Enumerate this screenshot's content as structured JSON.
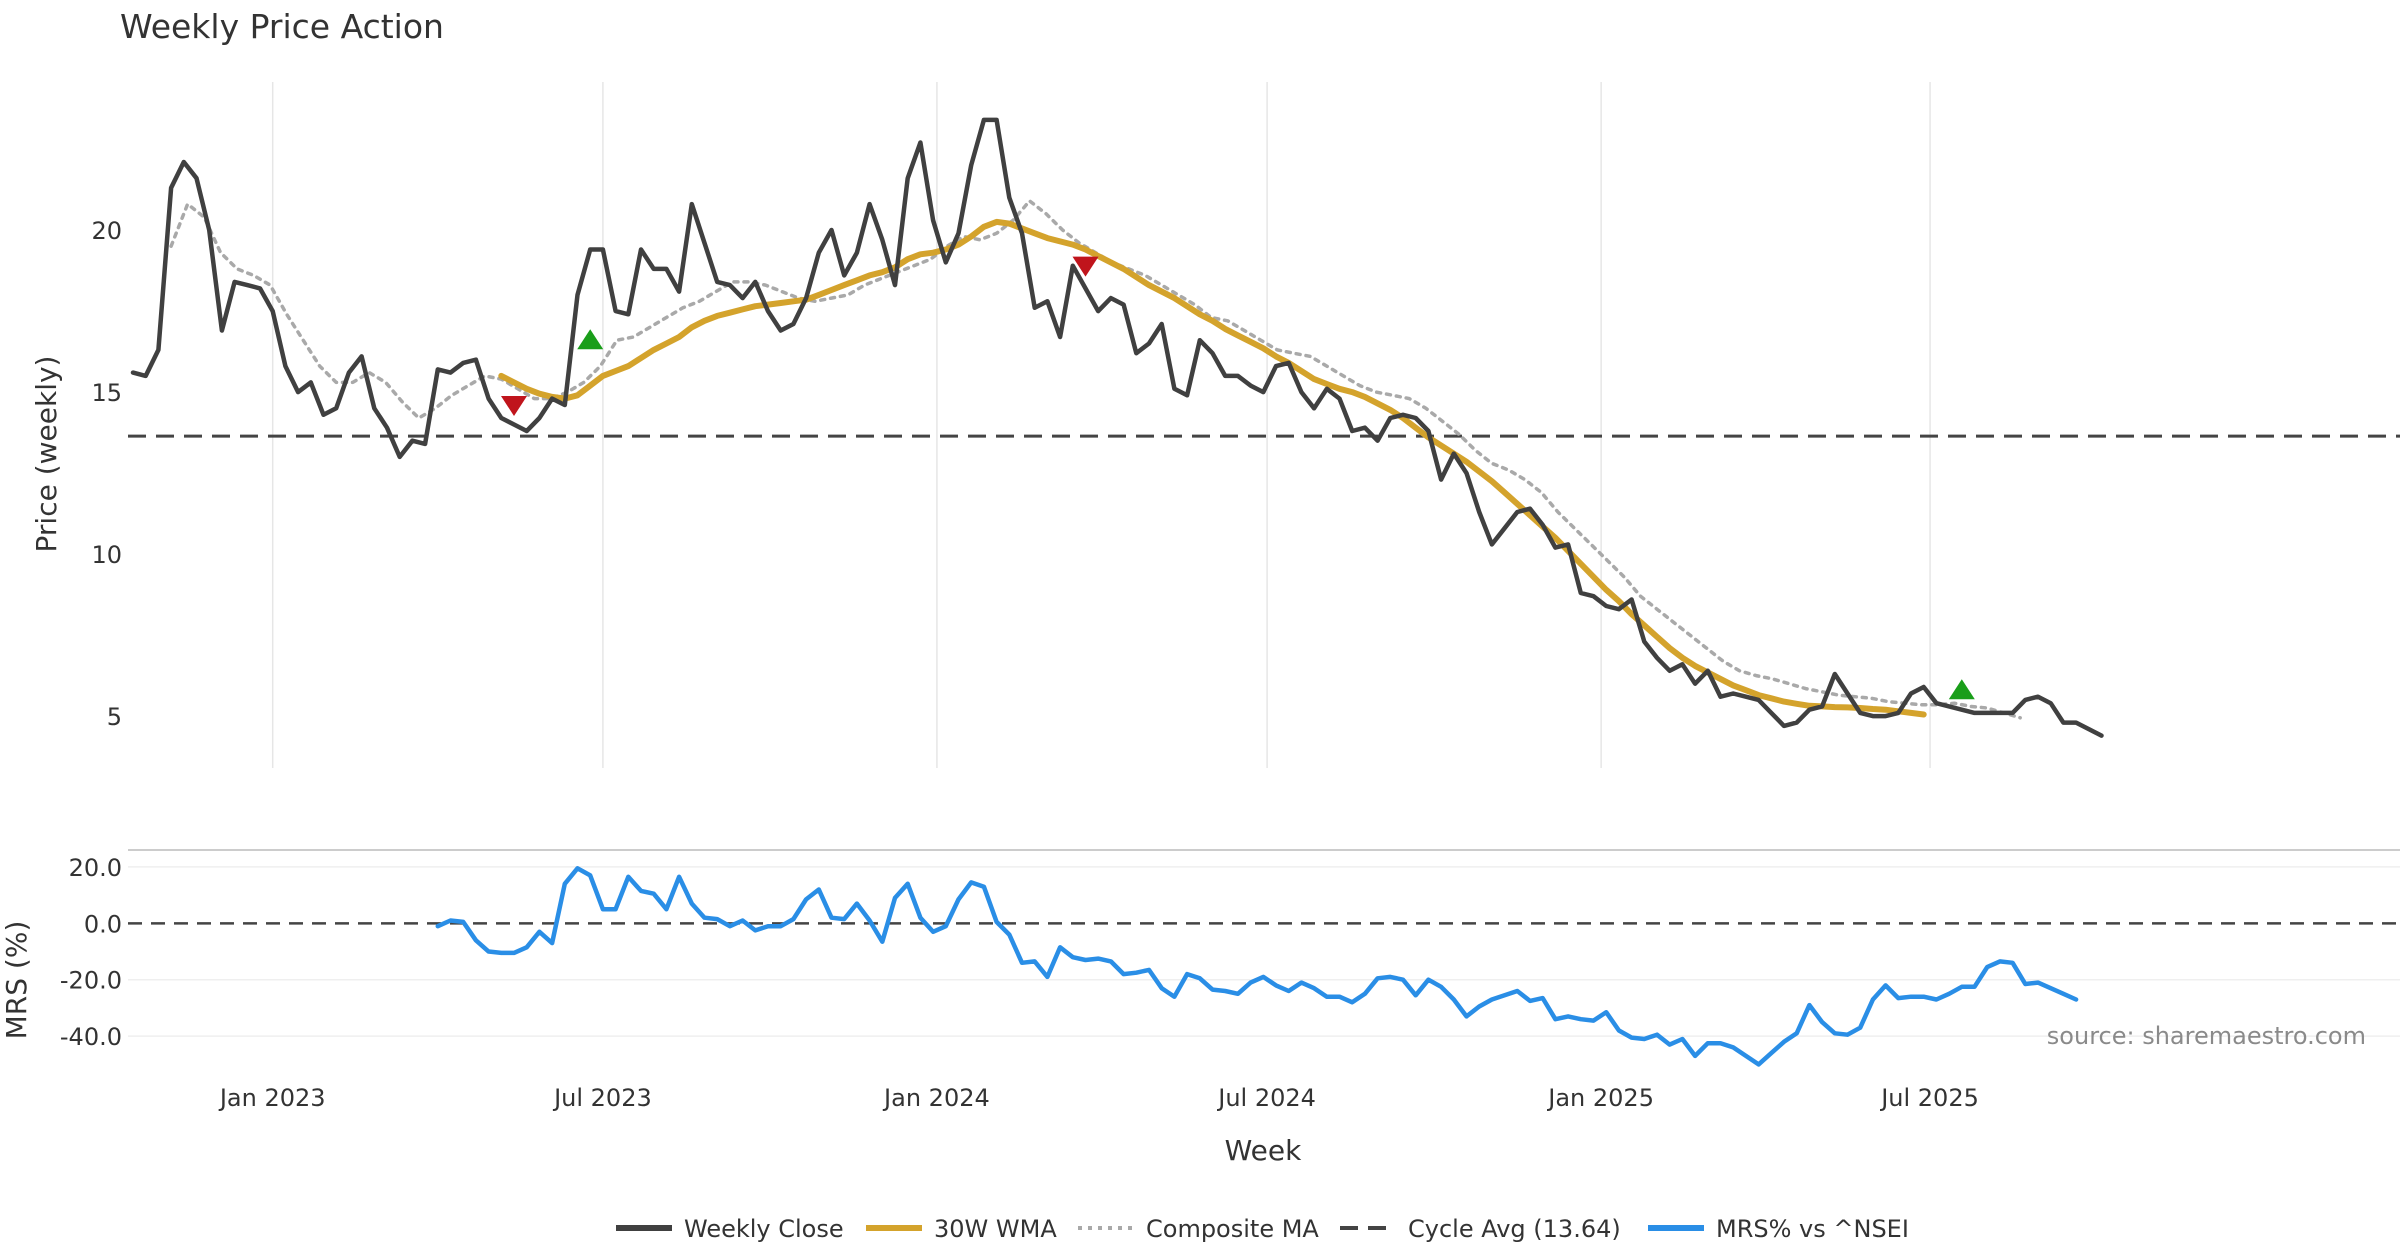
{
  "chart_data": [
    {
      "type": "line",
      "title": "Weekly Price Action",
      "xlabel": "Week",
      "ylabel": "Price (weekly)",
      "ylim": [
        3.4,
        25.0
      ],
      "yticks": [
        5,
        10,
        15,
        20
      ],
      "xticks": [
        {
          "label": "Jan 2023",
          "week": 11
        },
        {
          "label": "Jul 2023",
          "week": 37
        },
        {
          "label": "Jan 2024",
          "week": 63.3
        },
        {
          "label": "Jul 2024",
          "week": 89.3
        },
        {
          "label": "Jan 2025",
          "week": 115.6
        },
        {
          "label": "Jul 2025",
          "week": 141.5
        }
      ],
      "x_range": [
        0,
        157.5
      ],
      "grid": "vertical",
      "series": [
        {
          "name": "Weekly Close",
          "color": "#404040",
          "values": [
            15.6,
            15.5,
            16.3,
            21.3,
            22.1,
            21.6,
            20.0,
            16.9,
            18.4,
            18.3,
            18.2,
            17.5,
            15.8,
            15.0,
            15.3,
            14.3,
            14.5,
            15.6,
            16.1,
            14.5,
            13.9,
            13.0,
            13.5,
            13.4,
            15.7,
            15.6,
            15.9,
            16.0,
            14.8,
            14.2,
            14.0,
            13.8,
            14.2,
            14.8,
            14.6,
            18.0,
            19.4,
            19.4,
            17.5,
            17.4,
            19.4,
            18.8,
            18.8,
            18.1,
            20.8,
            19.6,
            18.4,
            18.3,
            17.9,
            18.4,
            17.5,
            16.9,
            17.1,
            17.9,
            19.3,
            20.0,
            18.6,
            19.3,
            20.8,
            19.7,
            18.3,
            21.6,
            22.7,
            20.3,
            19.0,
            19.9,
            22.0,
            23.4,
            23.4,
            21.0,
            19.9,
            17.6,
            17.8,
            16.7,
            18.9,
            18.2,
            17.5,
            17.9,
            17.7,
            16.2,
            16.5,
            17.1,
            15.1,
            14.9,
            16.6,
            16.2,
            15.5,
            15.5,
            15.2,
            15.0,
            15.8,
            15.9,
            15.0,
            14.5,
            15.1,
            14.8,
            13.8,
            13.9,
            13.5,
            14.2,
            14.3,
            14.2,
            13.8,
            12.3,
            13.1,
            12.5,
            11.3,
            10.3,
            10.8,
            11.3,
            11.4,
            10.9,
            10.2,
            10.3,
            8.8,
            8.7,
            8.4,
            8.3,
            8.6,
            7.3,
            6.8,
            6.4,
            6.6,
            6.0,
            6.4,
            5.6,
            5.7,
            5.6,
            5.5,
            5.1,
            4.7,
            4.8,
            5.2,
            5.3,
            6.3,
            5.7,
            5.1,
            5.0,
            5.0,
            5.1,
            5.7,
            5.9,
            5.4,
            5.3,
            5.2,
            5.1,
            5.1,
            5.1,
            5.1,
            5.5,
            5.6,
            5.4,
            4.8,
            4.8,
            4.6,
            4.4
          ]
        },
        {
          "name": "30W WMA",
          "color": "#d4a32c",
          "start_week": 29,
          "values": [
            15.5,
            15.3,
            15.1,
            14.95,
            14.85,
            14.8,
            14.9,
            15.2,
            15.5,
            15.65,
            15.8,
            16.05,
            16.3,
            16.5,
            16.7,
            17.0,
            17.2,
            17.35,
            17.45,
            17.55,
            17.65,
            17.7,
            17.75,
            17.8,
            17.85,
            18.0,
            18.15,
            18.3,
            18.45,
            18.6,
            18.7,
            18.85,
            19.1,
            19.25,
            19.3,
            19.4,
            19.55,
            19.8,
            20.1,
            20.25,
            20.2,
            20.05,
            19.9,
            19.75,
            19.65,
            19.55,
            19.4,
            19.2,
            19.0,
            18.8,
            18.55,
            18.3,
            18.1,
            17.9,
            17.65,
            17.4,
            17.2,
            16.95,
            16.75,
            16.55,
            16.35,
            16.1,
            15.9,
            15.65,
            15.4,
            15.25,
            15.1,
            15.0,
            14.85,
            14.65,
            14.45,
            14.2,
            13.9,
            13.6,
            13.35,
            13.1,
            12.85,
            12.55,
            12.25,
            11.9,
            11.55,
            11.2,
            10.85,
            10.5,
            10.1,
            9.7,
            9.3,
            8.9,
            8.55,
            8.15,
            7.8,
            7.45,
            7.1,
            6.8,
            6.55,
            6.35,
            6.15,
            5.95,
            5.8,
            5.65,
            5.55,
            5.45,
            5.38,
            5.32,
            5.3,
            5.28,
            5.27,
            5.25,
            5.22,
            5.2,
            5.15,
            5.1,
            5.05
          ]
        },
        {
          "name": "Composite MA",
          "color": "#a9a9a9",
          "start_week": 3,
          "values": [
            19.5,
            20.8,
            20.4,
            19.3,
            18.8,
            18.6,
            18.3,
            17.4,
            16.6,
            15.8,
            15.3,
            15.3,
            15.6,
            15.3,
            14.7,
            14.2,
            14.5,
            14.9,
            15.2,
            15.5,
            15.4,
            15.1,
            14.8,
            14.8,
            15.0,
            15.3,
            15.8,
            16.6,
            16.7,
            17.0,
            17.3,
            17.6,
            17.8,
            18.1,
            18.4,
            18.4,
            18.3,
            18.1,
            17.9,
            17.8,
            17.9,
            18.0,
            18.3,
            18.5,
            18.7,
            18.9,
            19.1,
            19.5,
            19.8,
            19.7,
            19.9,
            20.3,
            20.9,
            20.5,
            20.0,
            19.6,
            19.3,
            19.0,
            18.8,
            18.6,
            18.3,
            18.0,
            17.7,
            17.3,
            17.2,
            16.9,
            16.6,
            16.3,
            16.2,
            16.1,
            15.8,
            15.5,
            15.2,
            15.0,
            14.9,
            14.8,
            14.5,
            14.1,
            13.7,
            13.2,
            12.8,
            12.6,
            12.3,
            11.9,
            11.3,
            10.8,
            10.3,
            9.8,
            9.3,
            8.7,
            8.3,
            7.9,
            7.5,
            7.1,
            6.7,
            6.4,
            6.25,
            6.15,
            6.0,
            5.85,
            5.75,
            5.65,
            5.6,
            5.55,
            5.45,
            5.4,
            5.35,
            5.35,
            5.4,
            5.3,
            5.25,
            5.1,
            4.95
          ],
          "x_step": 1.3
        },
        {
          "name": "Cycle Avg (13.64)",
          "color": "#444444",
          "value": 13.64
        }
      ],
      "markers": [
        {
          "type": "sell",
          "week": 30,
          "value": 14.6,
          "color": "#c0141c"
        },
        {
          "type": "buy",
          "week": 36,
          "value": 16.6,
          "color": "#1a9e1a"
        },
        {
          "type": "sell",
          "week": 75,
          "value": 18.9,
          "color": "#c0141c"
        },
        {
          "type": "buy",
          "week": 144,
          "value": 5.8,
          "color": "#1a9e1a"
        }
      ]
    },
    {
      "type": "line",
      "xlabel": "Week",
      "ylabel": "MRS (%)",
      "ylim": [
        -52,
        26
      ],
      "yticks": [
        20.0,
        0.0,
        -20.0,
        -40.0
      ],
      "ytick_labels": [
        "20.0",
        "0.0",
        "-20.0",
        "-40.0"
      ],
      "series": [
        {
          "name": "MRS% vs ^NSEI",
          "color": "#2a8ee6",
          "start_week": 24,
          "values": [
            -1,
            1,
            0.5,
            -6,
            -10,
            -10.5,
            -10.5,
            -8.5,
            -3,
            -7,
            14,
            19.5,
            17,
            5,
            5,
            16.5,
            11.5,
            10.5,
            5,
            16.5,
            7,
            2,
            1.5,
            -1,
            1,
            -2.5,
            -1,
            -1,
            1.5,
            8.5,
            12,
            2,
            1.5,
            7,
            1,
            -6.5,
            9,
            14,
            2,
            -3,
            -1,
            8.5,
            14.5,
            13,
            0.5,
            -4,
            -14,
            -13.5,
            -19,
            -8.5,
            -12,
            -13,
            -12.5,
            -13.5,
            -18,
            -17.5,
            -16.5,
            -23,
            -26,
            -18,
            -19.5,
            -23.5,
            -24,
            -25,
            -21,
            -19,
            -22,
            -24,
            -21,
            -23,
            -26,
            -26,
            -28,
            -25,
            -19.5,
            -19,
            -20,
            -25.5,
            -20,
            -22.5,
            -27,
            -33,
            -29.5,
            -27,
            -25.5,
            -24,
            -27.5,
            -26.5,
            -34,
            -33,
            -34,
            -34.5,
            -31.5,
            -38,
            -40.5,
            -41,
            -39.5,
            -43,
            -41,
            -47,
            -42.5,
            -42.5,
            -44,
            -47,
            -50,
            -46,
            -42,
            -39,
            -29,
            -35,
            -39,
            -39.5,
            -37,
            -27,
            -22,
            -26.5,
            -26,
            -26,
            -27,
            -25,
            -22.5,
            -22.5,
            -15.5,
            -13.5,
            -14,
            -21.5,
            -21,
            -23,
            -25,
            -27
          ]
        },
        {
          "name": "zero-line",
          "value": 0
        }
      ],
      "annotation": "source: sharemaestro.com"
    }
  ],
  "legend": {
    "placement": "bottom-center",
    "items": [
      {
        "label": "Weekly Close",
        "style": "solid",
        "color": "#404040"
      },
      {
        "label": "30W WMA",
        "style": "solid",
        "color": "#d4a32c"
      },
      {
        "label": "Composite MA",
        "style": "dotted",
        "color": "#a9a9a9"
      },
      {
        "label": "Cycle Avg (13.64)",
        "style": "dashed",
        "color": "#444444"
      },
      {
        "label": "MRS% vs ^NSEI",
        "style": "solid",
        "color": "#2a8ee6"
      }
    ]
  }
}
